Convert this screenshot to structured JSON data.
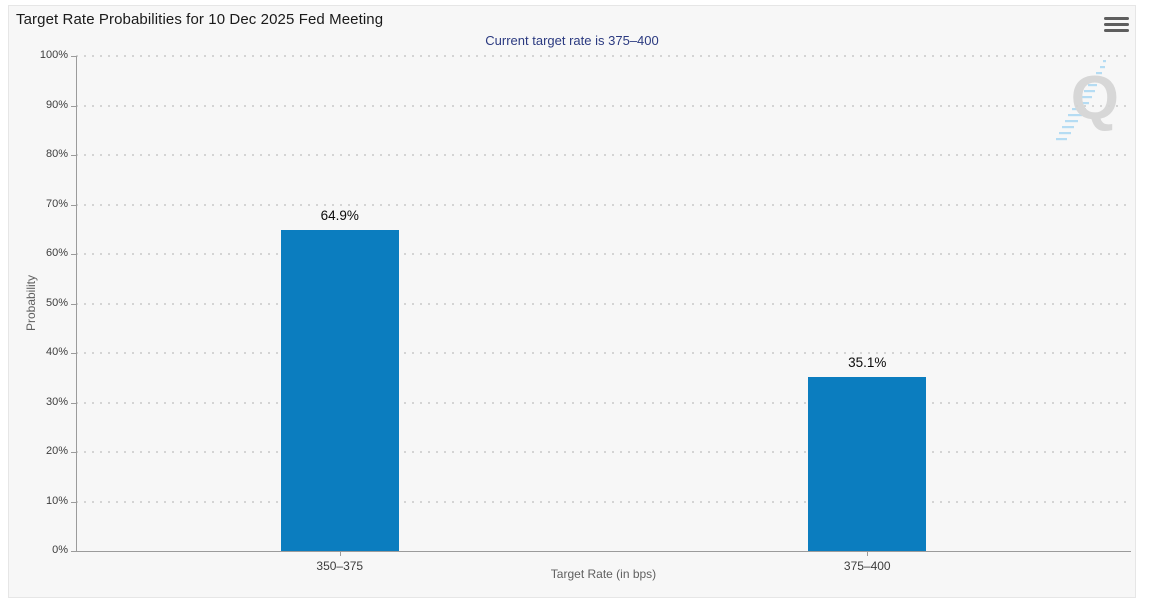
{
  "header": {
    "title": "Target Rate Probabilities for 10 Dec 2025 Fed Meeting",
    "subtitle": "Current target rate is 375–400",
    "menu_icon": "hamburger-menu-icon"
  },
  "watermark": {
    "letter": "Q"
  },
  "chart_data": {
    "type": "bar",
    "title": "Target Rate Probabilities for 10 Dec 2025 Fed Meeting",
    "subtitle": "Current target rate is 375–400",
    "categories": [
      "350–375",
      "375–400"
    ],
    "values": [
      64.9,
      35.1
    ],
    "value_labels": [
      "64.9%",
      "35.1%"
    ],
    "xlabel": "Target Rate (in bps)",
    "ylabel": "Probability",
    "ylim": [
      0,
      100
    ],
    "grid": "dotted-horizontal",
    "legend": "none",
    "bar_color": "#0b7dbf",
    "y_ticks": [
      {
        "value": 0,
        "label": "0%"
      },
      {
        "value": 10,
        "label": "10%"
      },
      {
        "value": 20,
        "label": "20%"
      },
      {
        "value": 30,
        "label": "30%"
      },
      {
        "value": 40,
        "label": "40%"
      },
      {
        "value": 50,
        "label": "50%"
      },
      {
        "value": 60,
        "label": "60%"
      },
      {
        "value": 70,
        "label": "70%"
      },
      {
        "value": 80,
        "label": "80%"
      },
      {
        "value": 90,
        "label": "90%"
      },
      {
        "value": 100,
        "label": "100%"
      }
    ]
  },
  "colors": {
    "page_background": "#ffffff",
    "chart_background": "#f7f7f7",
    "bar": "#0b7dbf",
    "subtitle_text": "#2b3a80",
    "axis_line": "#9b9b9b",
    "gridline": "#d4d4d4"
  }
}
